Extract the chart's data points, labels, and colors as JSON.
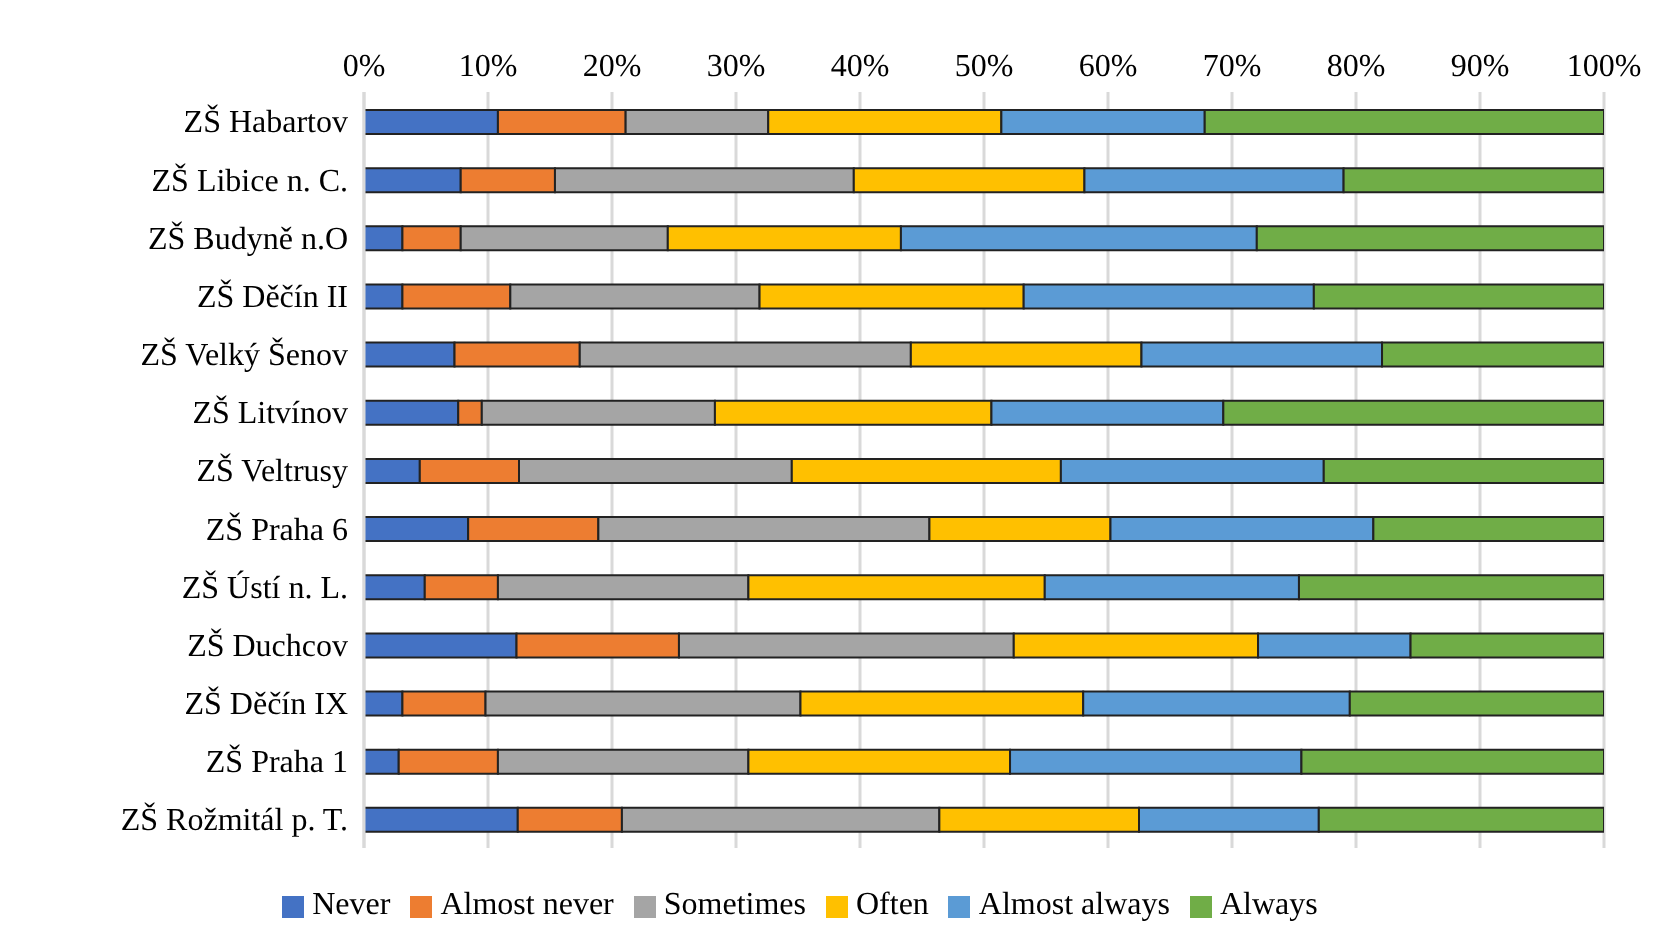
{
  "chart_data": {
    "type": "bar",
    "orientation": "horizontal",
    "stacked": true,
    "categories": [
      "ZŠ Habartov",
      "ZŠ Libice n. C.",
      "ZŠ Budyně n.O",
      "ZŠ Děčín II",
      "ZŠ Velký Šenov",
      "ZŠ Litvínov",
      "ZŠ Veltrusy",
      "ZŠ Praha 6",
      "ZŠ Ústí n. L.",
      "ZŠ Duchcov",
      "ZŠ Děčín IX",
      "ZŠ Praha 1",
      "ZŠ Rožmitál p. T."
    ],
    "series": [
      {
        "name": "Never",
        "color": "#4472c4",
        "values": [
          10.8,
          7.8,
          3.1,
          3.1,
          7.3,
          7.6,
          4.5,
          8.4,
          4.9,
          12.3,
          3.1,
          2.8,
          12.4
        ]
      },
      {
        "name": "Almost never",
        "color": "#ed7d31",
        "values": [
          10.3,
          7.6,
          4.7,
          8.7,
          10.1,
          1.9,
          8.0,
          10.5,
          5.9,
          13.1,
          6.7,
          8.0,
          8.4
        ]
      },
      {
        "name": "Sometimes",
        "color": "#a5a5a5",
        "values": [
          11.5,
          24.1,
          16.7,
          20.1,
          26.7,
          18.8,
          22.0,
          26.7,
          20.2,
          27.0,
          25.4,
          20.2,
          25.6
        ]
      },
      {
        "name": "Often",
        "color": "#ffc000",
        "values": [
          18.8,
          18.6,
          18.8,
          21.3,
          18.6,
          22.3,
          21.7,
          14.6,
          23.9,
          19.7,
          22.8,
          21.1,
          16.1
        ]
      },
      {
        "name": "Almost always",
        "color": "#5b9bd5",
        "values": [
          16.4,
          20.9,
          28.7,
          23.4,
          19.4,
          18.7,
          21.2,
          21.2,
          20.5,
          12.3,
          21.5,
          23.5,
          14.5
        ]
      },
      {
        "name": "Always",
        "color": "#70ad47",
        "values": [
          32.2,
          21.0,
          28.0,
          23.4,
          17.9,
          30.7,
          22.6,
          18.6,
          24.6,
          15.6,
          20.5,
          24.4,
          23.0
        ]
      }
    ],
    "xlim": [
      0,
      100
    ],
    "xticks": [
      {
        "value": 0,
        "label": "0%"
      },
      {
        "value": 10,
        "label": "10%"
      },
      {
        "value": 20,
        "label": "20%"
      },
      {
        "value": 30,
        "label": "30%"
      },
      {
        "value": 40,
        "label": "40%"
      },
      {
        "value": 50,
        "label": "50%"
      },
      {
        "value": 60,
        "label": "60%"
      },
      {
        "value": 70,
        "label": "70%"
      },
      {
        "value": 80,
        "label": "80%"
      },
      {
        "value": 90,
        "label": "90%"
      },
      {
        "value": 100,
        "label": "100%"
      }
    ],
    "grid": "x",
    "legend": "bottom"
  }
}
